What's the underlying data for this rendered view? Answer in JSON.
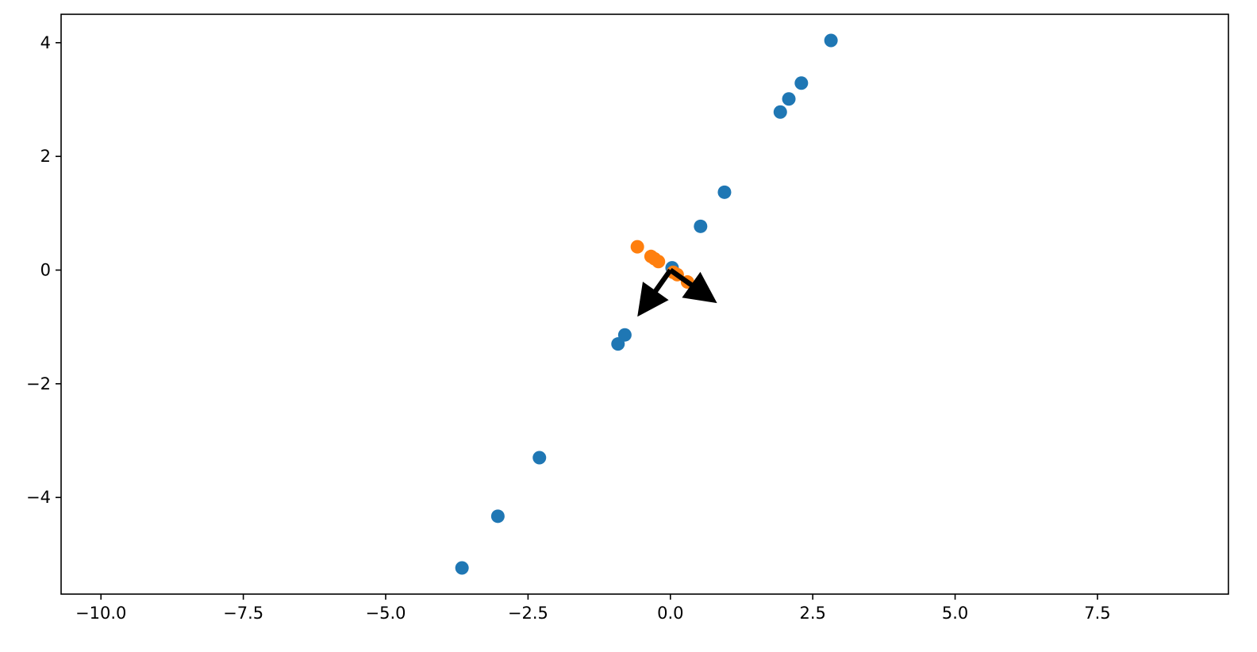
{
  "chart_data": {
    "type": "scatter",
    "xlim": [
      -10.7,
      9.8
    ],
    "ylim": [
      -5.7,
      4.5
    ],
    "x_ticks": [
      -10.0,
      -7.5,
      -5.0,
      -2.5,
      0.0,
      2.5,
      5.0,
      7.5
    ],
    "x_tick_labels": [
      "−10.0",
      "−7.5",
      "−5.0",
      "−2.5",
      "0.0",
      "2.5",
      "5.0",
      "7.5"
    ],
    "y_ticks": [
      4,
      2,
      0,
      -2,
      -4
    ],
    "y_tick_labels": [
      "4",
      "2",
      "0",
      "−2",
      "−4"
    ],
    "grid": false,
    "title": "",
    "xlabel": "",
    "ylabel": "",
    "series": [
      {
        "color": "#1f77b4",
        "points": [
          [
            2.82,
            4.04
          ],
          [
            2.3,
            3.29
          ],
          [
            2.08,
            3.01
          ],
          [
            1.93,
            2.78
          ],
          [
            0.95,
            1.37
          ],
          [
            0.53,
            0.77
          ],
          [
            0.03,
            0.04
          ],
          [
            -0.8,
            -1.14
          ],
          [
            -0.92,
            -1.3
          ],
          [
            -2.3,
            -3.3
          ],
          [
            -3.03,
            -4.33
          ],
          [
            -3.66,
            -5.24
          ]
        ]
      },
      {
        "color": "#ff7f0e",
        "points": [
          [
            -0.58,
            0.41
          ],
          [
            -0.34,
            0.24
          ],
          [
            -0.28,
            0.2
          ],
          [
            -0.21,
            0.15
          ],
          [
            0.05,
            -0.04
          ],
          [
            0.12,
            -0.08
          ],
          [
            0.3,
            -0.21
          ],
          [
            0.44,
            -0.31
          ],
          [
            0.52,
            -0.37
          ]
        ]
      }
    ],
    "arrows": [
      {
        "from": [
          0,
          0
        ],
        "to": [
          0.82,
          -0.58
        ],
        "color": "#000000"
      },
      {
        "from": [
          0,
          0
        ],
        "to": [
          -0.58,
          -0.82
        ],
        "color": "#000000"
      }
    ]
  }
}
